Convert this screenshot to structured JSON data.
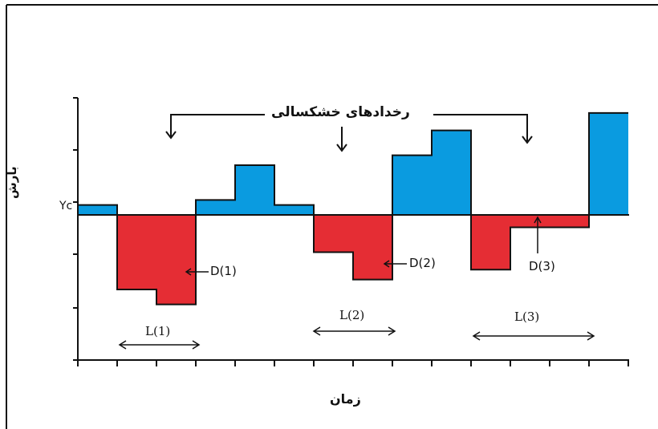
{
  "title": "رخدادهای خشکسالی",
  "ylabel": "بارش",
  "xlabel": "زمان",
  "threshold_label": "Yc",
  "colors": {
    "above": "#0a9be0",
    "below": "#e52d34",
    "line": "#111111"
  },
  "chart_data": {
    "type": "bar",
    "threshold": 0,
    "values": [
      0.4,
      -3.0,
      -3.6,
      0.6,
      2.0,
      0.4,
      -1.5,
      -2.6,
      2.4,
      3.4,
      -2.2,
      -0.5,
      -0.5,
      4.1
    ],
    "drought_events": [
      {
        "label": "D(1)",
        "duration_label": "L(1)"
      },
      {
        "label": "D(2)",
        "duration_label": "L(2)"
      },
      {
        "label": "D(3)",
        "duration_label": "L(3)"
      }
    ]
  }
}
